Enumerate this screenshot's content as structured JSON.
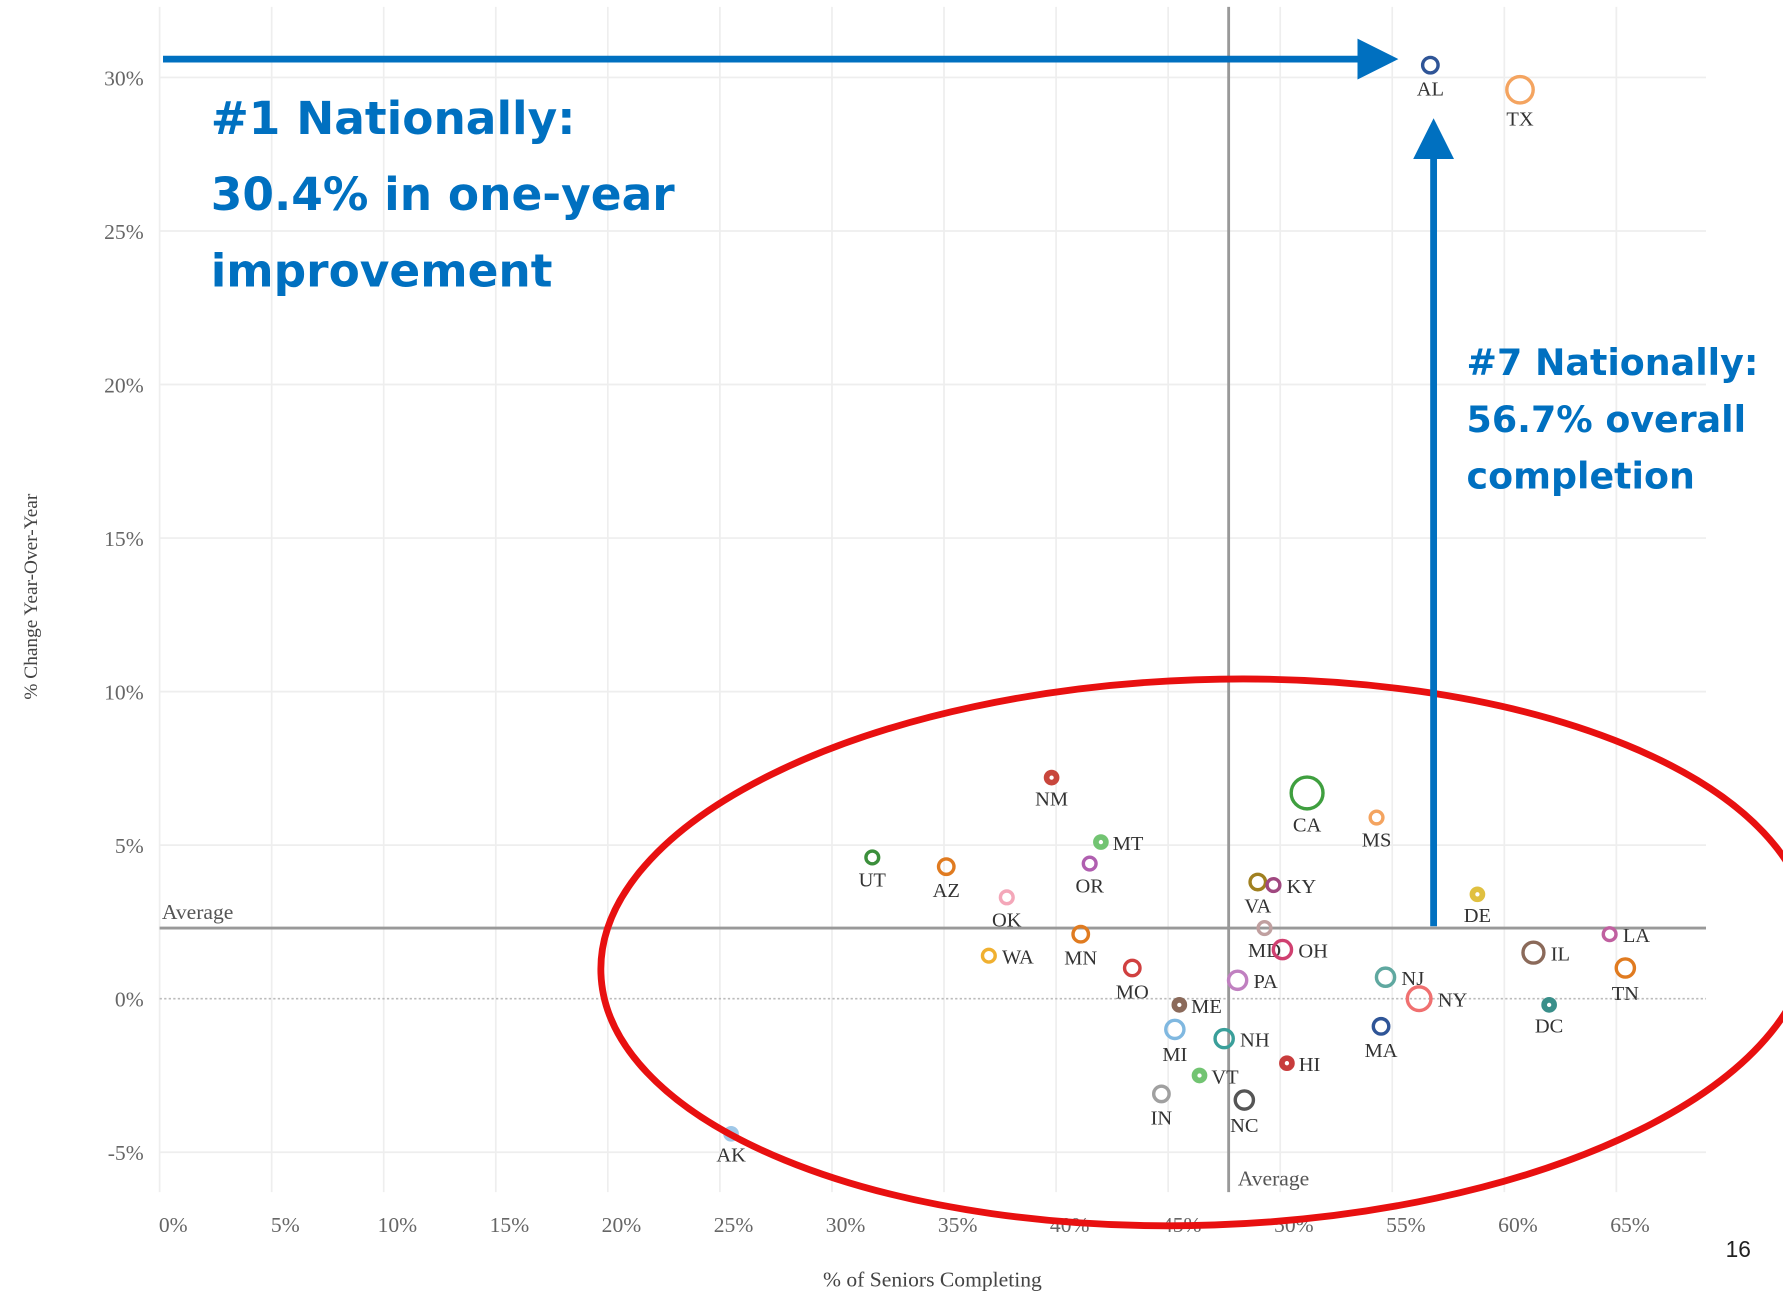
{
  "chart_data": {
    "type": "scatter",
    "x_label": "% of Seniors Completing",
    "y_label": "% Change Year-Over-Year",
    "xlim": [
      0,
      69
    ],
    "ylim": [
      -6.3,
      32.3
    ],
    "xticks": [
      {
        "value": 0,
        "label": "0%"
      },
      {
        "value": 5,
        "label": "5%"
      },
      {
        "value": 10,
        "label": "10%"
      },
      {
        "value": 15,
        "label": "15%"
      },
      {
        "value": 20,
        "label": "20%"
      },
      {
        "value": 25,
        "label": "25%"
      },
      {
        "value": 30,
        "label": "30%"
      },
      {
        "value": 35,
        "label": "35%"
      },
      {
        "value": 40,
        "label": "40%"
      },
      {
        "value": 45,
        "label": "45%"
      },
      {
        "value": 50,
        "label": "50%"
      },
      {
        "value": 55,
        "label": "55%"
      },
      {
        "value": 60,
        "label": "60%"
      },
      {
        "value": 65,
        "label": "65%"
      }
    ],
    "yticks": [
      {
        "value": -5,
        "label": "-5%"
      },
      {
        "value": 0,
        "label": "0%"
      },
      {
        "value": 5,
        "label": "5%"
      },
      {
        "value": 10,
        "label": "10%"
      },
      {
        "value": 15,
        "label": "15%"
      },
      {
        "value": 20,
        "label": "20%"
      },
      {
        "value": 25,
        "label": "25%"
      },
      {
        "value": 30,
        "label": "30%"
      }
    ],
    "grid": true,
    "average_label": "Average",
    "x_average": 47.7,
    "y_average": 2.3,
    "series": [
      {
        "labels": [
          "AL",
          "TX",
          "NM",
          "MT",
          "CA",
          "MS",
          "UT",
          "AZ",
          "OR",
          "OK",
          "VA",
          "KY",
          "DE",
          "WA",
          "MN",
          "MD",
          "OH",
          "NJ",
          "NY",
          "MA",
          "LA",
          "IL",
          "TN",
          "DC",
          "MO",
          "ME",
          "PA",
          "MI",
          "NH",
          "HI",
          "VT",
          "IN",
          "NC",
          "AK"
        ],
        "x": [
          56.7,
          60.7,
          39.8,
          42.0,
          51.2,
          54.3,
          31.8,
          35.1,
          41.5,
          37.8,
          49.0,
          49.7,
          58.8,
          37.0,
          41.1,
          49.3,
          50.1,
          54.7,
          56.2,
          54.5,
          64.7,
          61.3,
          65.4,
          62.0,
          43.4,
          45.5,
          48.1,
          45.3,
          47.5,
          50.3,
          46.4,
          44.7,
          48.4,
          25.5
        ],
        "values": [
          30.4,
          29.6,
          7.2,
          5.1,
          6.7,
          5.9,
          4.6,
          4.3,
          4.4,
          3.3,
          3.8,
          3.7,
          3.4,
          1.4,
          2.1,
          2.3,
          1.6,
          0.7,
          0.0,
          -0.9,
          2.1,
          1.5,
          1.0,
          -0.2,
          1.0,
          -0.2,
          0.6,
          -1.0,
          -1.3,
          -2.1,
          -2.5,
          -3.1,
          -3.3,
          -4.4
        ],
        "sizes": [
          2,
          4,
          1,
          1,
          5,
          1.5,
          1.5,
          2,
          1.5,
          1.5,
          2,
          1.5,
          1,
          1.5,
          2,
          1.5,
          2.5,
          2.5,
          3.5,
          2,
          1.5,
          3,
          2.5,
          1,
          2,
          1,
          2.5,
          2.5,
          2.5,
          1,
          1,
          2,
          2.5,
          1
        ],
        "colors": [
          "#2f5597",
          "#f4a460",
          "#c8463c",
          "#72c472",
          "#3f9f3f",
          "#f4a460",
          "#3c8f3c",
          "#e07b20",
          "#b05fb0",
          "#f4a7b9",
          "#a08020",
          "#a04880",
          "#e0c040",
          "#f0b030",
          "#e07b20",
          "#c0a0a0",
          "#d04070",
          "#5fa8a0",
          "#f07070",
          "#2f5597",
          "#c060a0",
          "#8b6a5a",
          "#e07b20",
          "#3a8f8a",
          "#d04040",
          "#8b6a5a",
          "#c080c0",
          "#80b8e0",
          "#3a9f9a",
          "#c83c3c",
          "#72c472",
          "#a0a0a0",
          "#555555",
          "#a0c8e8"
        ]
      }
    ],
    "annotations": [
      "#1 Nationally:",
      "30.4% in one-year",
      "improvement",
      "#7 Nationally:",
      "56.7% overall",
      "completion"
    ]
  },
  "page_number": "16"
}
